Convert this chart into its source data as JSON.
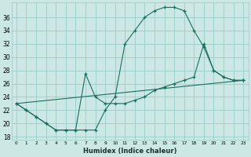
{
  "xlabel": "Humidex (Indice chaleur)",
  "background_color": "#cce8e4",
  "grid_color": "#99ccC8",
  "line_color": "#1a6e60",
  "xlim": [
    -0.5,
    23.5
  ],
  "ylim": [
    17.5,
    38.2
  ],
  "xticks": [
    0,
    1,
    2,
    3,
    4,
    5,
    6,
    7,
    8,
    9,
    10,
    11,
    12,
    13,
    14,
    15,
    16,
    17,
    18,
    19,
    20,
    21,
    22,
    23
  ],
  "yticks": [
    18,
    20,
    22,
    24,
    26,
    28,
    30,
    32,
    34,
    36
  ],
  "curve1_x": [
    0,
    1,
    2,
    3,
    4,
    5,
    6,
    7,
    8,
    9,
    10,
    11,
    12,
    13,
    14,
    15,
    16,
    17,
    18,
    19,
    20,
    21,
    22,
    23
  ],
  "curve1_y": [
    23,
    22,
    21,
    20,
    19,
    19,
    19,
    19,
    19,
    22,
    24,
    32,
    34,
    36,
    37,
    37.5,
    37.5,
    37,
    34,
    31.5,
    28,
    27,
    26.5,
    26.5
  ],
  "curve2_x": [
    0,
    1,
    2,
    3,
    4,
    5,
    6,
    7,
    8,
    9,
    10,
    11,
    12,
    13,
    14,
    15,
    16,
    17,
    18,
    19,
    20,
    21,
    22,
    23
  ],
  "curve2_y": [
    23,
    22,
    21,
    20,
    19,
    19,
    19,
    27.5,
    24,
    23,
    23,
    23,
    23.5,
    24,
    25,
    25.5,
    26,
    26.5,
    27,
    32,
    28,
    27,
    26.5,
    26.5
  ],
  "curve3_x": [
    0,
    23
  ],
  "curve3_y": [
    23,
    26.5
  ]
}
